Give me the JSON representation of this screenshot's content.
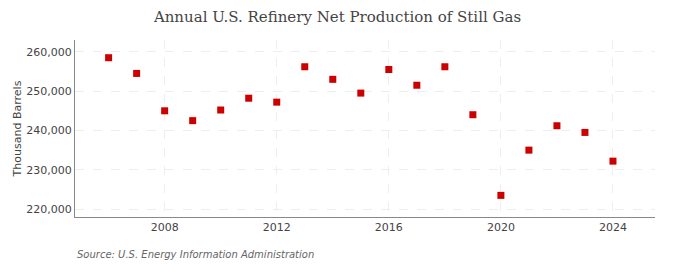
{
  "chart_data": {
    "type": "scatter",
    "title": "Annual U.S. Refinery Net Production of Still Gas",
    "y_label": "Thousand Barrels",
    "annotations": [
      "Source: U.S. Energy Information Administration"
    ],
    "x": [
      2006,
      2007,
      2008,
      2009,
      2010,
      2011,
      2012,
      2013,
      2014,
      2015,
      2016,
      2017,
      2018,
      2019,
      2020,
      2021,
      2022,
      2023,
      2024
    ],
    "values": [
      258500,
      254500,
      245000,
      242500,
      245200,
      248200,
      247200,
      256200,
      253000,
      249500,
      255500,
      251500,
      256200,
      244000,
      223500,
      235000,
      241200,
      239500,
      232200
    ],
    "color": "#cc0000",
    "marker": "square",
    "xlim": [
      2004.8,
      2025.5
    ],
    "xticks": [
      2008,
      2012,
      2016,
      2020,
      2024
    ],
    "ylim": [
      218000,
      263000
    ],
    "yticks": [
      {
        "value": 220000,
        "label": "220,000"
      },
      {
        "value": 230000,
        "label": "230,000"
      },
      {
        "value": 240000,
        "label": "240,000"
      },
      {
        "value": 250000,
        "label": "250,000"
      },
      {
        "value": 260000,
        "label": "260,000"
      }
    ],
    "grid": true
  }
}
